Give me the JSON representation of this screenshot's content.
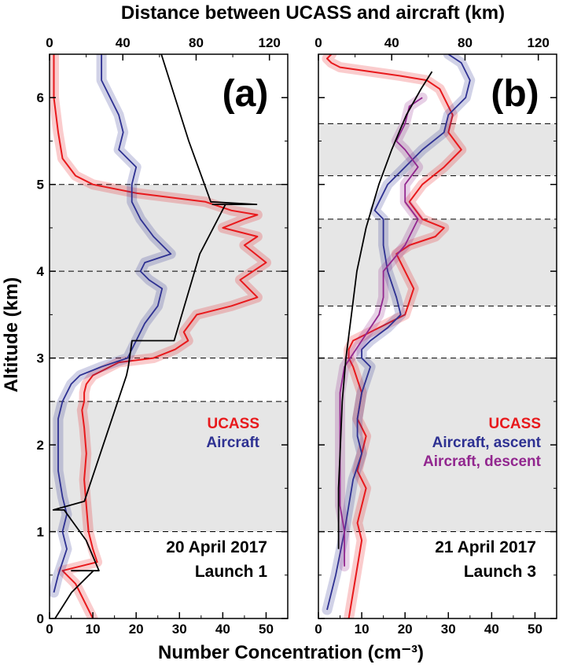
{
  "figure": {
    "top_axis_title": "Distance between UCASS and aircraft (km)",
    "x_axis_title": "Number Concentration (cm⁻³)",
    "y_axis_title": "Altitude (km)"
  },
  "chart_data": [
    {
      "type": "line",
      "panel_label": "(a)",
      "annotation": [
        "20 April 2017",
        "Launch 1"
      ],
      "xlabel": "Number Concentration (cm⁻³)",
      "x2label": "Distance between UCASS and aircraft (km)",
      "ylabel": "Altitude (km)",
      "xlim": [
        0,
        55
      ],
      "x2lim": [
        0,
        130
      ],
      "ylim": [
        0,
        6.5
      ],
      "xticks": [
        0,
        10,
        20,
        30,
        40,
        50
      ],
      "x2ticks": [
        0,
        40,
        80,
        120
      ],
      "yticks": [
        0,
        1,
        2,
        3,
        4,
        5,
        6
      ],
      "shaded_bands": [
        [
          1.0,
          2.5
        ],
        [
          3.0,
          5.0
        ]
      ],
      "dashed_lines": [
        1.0,
        2.5,
        3.0,
        4.0,
        5.0
      ],
      "series": [
        {
          "name": "UCASS",
          "color": "#e8191c",
          "axis": "bottom",
          "x": [
            10,
            8,
            6,
            3,
            11,
            10,
            9,
            8.5,
            8,
            8.5,
            8,
            7.5,
            8,
            8,
            8.5,
            10,
            16,
            24,
            29,
            32,
            31,
            34,
            42,
            48,
            44,
            50,
            45,
            48,
            40,
            45,
            48,
            42,
            36,
            20,
            10,
            6,
            3,
            2,
            1,
            1
          ],
          "y": [
            0.0,
            0.2,
            0.4,
            0.55,
            0.65,
            0.8,
            1.0,
            1.3,
            1.6,
            1.9,
            2.2,
            2.4,
            2.5,
            2.6,
            2.7,
            2.8,
            2.95,
            3.0,
            3.1,
            3.2,
            3.3,
            3.5,
            3.6,
            3.7,
            3.9,
            4.1,
            4.3,
            4.4,
            4.5,
            4.6,
            4.65,
            4.7,
            4.8,
            4.9,
            5.0,
            5.1,
            5.3,
            5.6,
            6.0,
            6.5
          ]
        },
        {
          "name": "Aircraft",
          "color": "#2e3192",
          "axis": "bottom",
          "x": [
            1,
            2,
            4,
            3,
            4,
            3,
            2,
            2,
            2,
            3,
            4,
            5,
            7,
            12,
            18,
            20,
            22,
            25,
            26,
            23,
            21,
            22,
            28,
            24,
            21,
            19,
            19,
            20,
            16,
            17,
            16,
            14,
            12,
            12
          ],
          "y": [
            0.3,
            0.5,
            0.8,
            1.0,
            1.2,
            1.4,
            1.7,
            2.0,
            2.3,
            2.5,
            2.6,
            2.7,
            2.8,
            2.9,
            3.0,
            3.2,
            3.4,
            3.6,
            3.8,
            3.9,
            4.0,
            4.1,
            4.2,
            4.4,
            4.6,
            4.8,
            5.0,
            5.2,
            5.4,
            5.6,
            5.8,
            6.0,
            6.2,
            6.5
          ]
        },
        {
          "name": "Distance",
          "color": "#000000",
          "axis": "top",
          "x": [
            3,
            12,
            24,
            12,
            27,
            20,
            8,
            2,
            19,
            42,
            43,
            45,
            68,
            82,
            96,
            89,
            113,
            88,
            76,
            61
          ],
          "y": [
            0.0,
            0.3,
            0.55,
            0.55,
            0.55,
            0.9,
            1.25,
            1.25,
            1.35,
            2.8,
            2.9,
            3.2,
            3.2,
            4.2,
            4.77,
            4.77,
            4.77,
            4.8,
            5.5,
            6.5
          ]
        }
      ]
    },
    {
      "type": "line",
      "panel_label": "(b)",
      "annotation": [
        "21 April 2017",
        "Launch 3"
      ],
      "xlabel": "Number Concentration (cm⁻³)",
      "x2label": "Distance between UCASS and aircraft (km)",
      "ylabel": "Altitude (km)",
      "xlim": [
        0,
        55
      ],
      "x2lim": [
        0,
        130
      ],
      "ylim": [
        0,
        6.5
      ],
      "xticks": [
        0,
        10,
        20,
        30,
        40,
        50
      ],
      "x2ticks": [
        0,
        40,
        80,
        120
      ],
      "yticks": [
        0,
        1,
        2,
        3,
        4,
        5,
        6
      ],
      "shaded_bands": [
        [
          1.0,
          3.0
        ],
        [
          3.6,
          4.6
        ],
        [
          5.1,
          5.7
        ]
      ],
      "dashed_lines": [
        1.0,
        3.0,
        3.6,
        4.6,
        5.1,
        5.7
      ],
      "series": [
        {
          "name": "UCASS",
          "color": "#e8191c",
          "axis": "bottom",
          "x": [
            7,
            8,
            9,
            10,
            9,
            10,
            11,
            9,
            10,
            11,
            9,
            10,
            8,
            7,
            7,
            8,
            12,
            20,
            22,
            20,
            18,
            21,
            27,
            29,
            24,
            21,
            24,
            29,
            33,
            30,
            31,
            29,
            28,
            25,
            19,
            12,
            5,
            3,
            2,
            3,
            3
          ],
          "y": [
            0.0,
            0.3,
            0.6,
            0.9,
            1.1,
            1.3,
            1.5,
            1.7,
            1.9,
            2.1,
            2.3,
            2.6,
            2.9,
            3.0,
            3.1,
            3.2,
            3.3,
            3.5,
            3.8,
            4.0,
            4.2,
            4.3,
            4.4,
            4.5,
            4.6,
            4.8,
            5.0,
            5.2,
            5.4,
            5.6,
            5.8,
            6.0,
            6.1,
            6.2,
            6.25,
            6.3,
            6.35,
            6.4,
            6.45,
            6.5,
            6.5
          ]
        },
        {
          "name": "Aircraft, ascent",
          "color": "#2e3192",
          "axis": "bottom",
          "x": [
            2,
            4,
            6,
            7,
            8,
            10,
            9,
            9,
            10,
            12,
            10,
            10,
            12,
            16,
            19,
            18,
            16,
            15,
            15,
            13,
            14,
            16,
            20,
            24,
            29,
            30,
            34,
            35,
            33,
            30
          ],
          "y": [
            0.1,
            0.5,
            1.0,
            1.3,
            1.6,
            1.9,
            2.1,
            2.3,
            2.6,
            2.9,
            3.0,
            3.1,
            3.2,
            3.35,
            3.5,
            3.7,
            4.0,
            4.3,
            4.6,
            4.7,
            4.8,
            5.0,
            5.2,
            5.4,
            5.6,
            5.8,
            6.0,
            6.2,
            6.4,
            6.5
          ]
        },
        {
          "name": "Aircraft, descent",
          "color": "#92278f",
          "axis": "bottom",
          "x": [
            6,
            6,
            5,
            5,
            5,
            5,
            5,
            6,
            10,
            14,
            15,
            15,
            20,
            23,
            20,
            20,
            23,
            20,
            18,
            20,
            21,
            24
          ],
          "y": [
            0.6,
            1.0,
            1.3,
            1.6,
            2.0,
            2.3,
            2.6,
            2.9,
            3.2,
            3.5,
            3.7,
            4.0,
            4.3,
            4.6,
            4.8,
            5.0,
            5.2,
            5.4,
            5.5,
            5.7,
            5.9,
            6.0
          ]
        },
        {
          "name": "Distance",
          "color": "#000000",
          "axis": "top",
          "x": [
            11,
            11,
            12,
            13,
            15,
            18,
            21,
            26,
            33,
            40,
            48,
            56,
            62
          ],
          "y": [
            0.8,
            1.5,
            2.0,
            2.5,
            3.0,
            3.5,
            4.0,
            4.5,
            5.0,
            5.4,
            5.8,
            6.1,
            6.3
          ]
        }
      ]
    }
  ]
}
